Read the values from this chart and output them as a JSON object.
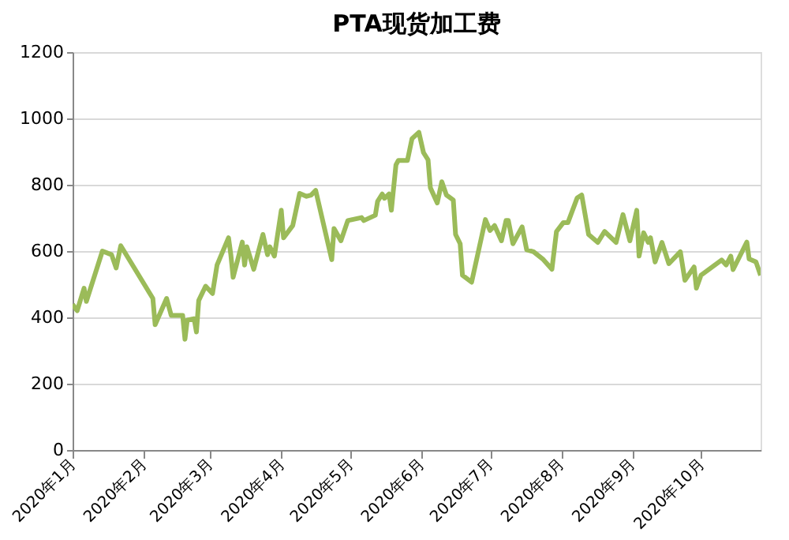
{
  "chart_data": {
    "type": "line",
    "title": "PTA现货加工费",
    "x": [
      "2020-01-01",
      "2020-01-03",
      "2020-01-06",
      "2020-01-07",
      "2020-01-14",
      "2020-01-18",
      "2020-01-20",
      "2020-01-22",
      "2020-02-05",
      "2020-02-06",
      "2020-02-11",
      "2020-02-13",
      "2020-02-18",
      "2020-02-19",
      "2020-02-20",
      "2020-02-23",
      "2020-02-24",
      "2020-02-25",
      "2020-02-28",
      "2020-03-02",
      "2020-03-04",
      "2020-03-09",
      "2020-03-10",
      "2020-03-11",
      "2020-03-15",
      "2020-03-16",
      "2020-03-17",
      "2020-03-20",
      "2020-03-24",
      "2020-03-26",
      "2020-03-27",
      "2020-03-29",
      "2020-04-01",
      "2020-04-02",
      "2020-04-06",
      "2020-04-09",
      "2020-04-12",
      "2020-04-14",
      "2020-04-16",
      "2020-04-23",
      "2020-04-24",
      "2020-04-27",
      "2020-04-30",
      "2020-05-06",
      "2020-05-07",
      "2020-05-12",
      "2020-05-13",
      "2020-05-15",
      "2020-05-16",
      "2020-05-18",
      "2020-05-19",
      "2020-05-21",
      "2020-05-22",
      "2020-05-26",
      "2020-05-28",
      "2020-05-31",
      "2020-06-02",
      "2020-06-04",
      "2020-06-05",
      "2020-06-08",
      "2020-06-10",
      "2020-06-12",
      "2020-06-15",
      "2020-06-16",
      "2020-06-18",
      "2020-06-19",
      "2020-06-23",
      "2020-06-29",
      "2020-07-01",
      "2020-07-03",
      "2020-07-06",
      "2020-07-08",
      "2020-07-09",
      "2020-07-11",
      "2020-07-15",
      "2020-07-17",
      "2020-07-20",
      "2020-07-24",
      "2020-07-28",
      "2020-07-30",
      "2020-08-02",
      "2020-08-04",
      "2020-08-08",
      "2020-08-10",
      "2020-08-13",
      "2020-08-17",
      "2020-08-20",
      "2020-08-25",
      "2020-08-28",
      "2020-08-31",
      "2020-09-03",
      "2020-09-04",
      "2020-09-06",
      "2020-09-08",
      "2020-09-09",
      "2020-09-11",
      "2020-09-14",
      "2020-09-17",
      "2020-09-22",
      "2020-09-24",
      "2020-09-28",
      "2020-09-29",
      "2020-10-01",
      "2020-10-10",
      "2020-10-12",
      "2020-10-14",
      "2020-10-15",
      "2020-10-21",
      "2020-10-22",
      "2020-10-25",
      "2020-10-27"
    ],
    "series": [
      {
        "color": "#9bbb59",
        "values": [
          439,
          420,
          488,
          448,
          600,
          589,
          549,
          616,
          457,
          378,
          457,
          406,
          406,
          334,
          392,
          396,
          356,
          451,
          494,
          472,
          558,
          640,
          589,
          521,
          627,
          558,
          613,
          545,
          650,
          589,
          613,
          585,
          723,
          640,
          677,
          774,
          765,
          769,
          783,
          574,
          668,
          631,
          692,
          701,
          692,
          708,
          750,
          772,
          759,
          772,
          723,
          860,
          873,
          873,
          939,
          958,
          897,
          875,
          791,
          745,
          809,
          769,
          754,
          650,
          622,
          527,
          506,
          695,
          662,
          677,
          631,
          692,
          692,
          622,
          673,
          604,
          598,
          576,
          545,
          659,
          686,
          686,
          760,
          769,
          650,
          626,
          659,
          626,
          710,
          631,
          723,
          585,
          655,
          626,
          640,
          567,
          626,
          562,
          598,
          512,
          552,
          488,
          527,
          573,
          558,
          585,
          544,
          627,
          576,
          567,
          527
        ]
      }
    ],
    "xlim": [
      "2020-01-01",
      "2020-10-27"
    ],
    "xticks": [
      {
        "value": "2020-01-01",
        "label": "2020年1月"
      },
      {
        "value": "2020-02-01",
        "label": "2020年2月"
      },
      {
        "value": "2020-03-01",
        "label": "2020年3月"
      },
      {
        "value": "2020-04-01",
        "label": "2020年4月"
      },
      {
        "value": "2020-05-01",
        "label": "2020年5月"
      },
      {
        "value": "2020-06-01",
        "label": "2020年6月"
      },
      {
        "value": "2020-07-01",
        "label": "2020年7月"
      },
      {
        "value": "2020-08-01",
        "label": "2020年8月"
      },
      {
        "value": "2020-09-01",
        "label": "2020年9月"
      },
      {
        "value": "2020-10-01",
        "label": "2020年10月"
      }
    ],
    "ylim": [
      0,
      1200
    ],
    "yticks": [
      0,
      200,
      400,
      600,
      800,
      1000,
      1200
    ],
    "grid": "y",
    "marker": "none",
    "line_style": "solid"
  }
}
